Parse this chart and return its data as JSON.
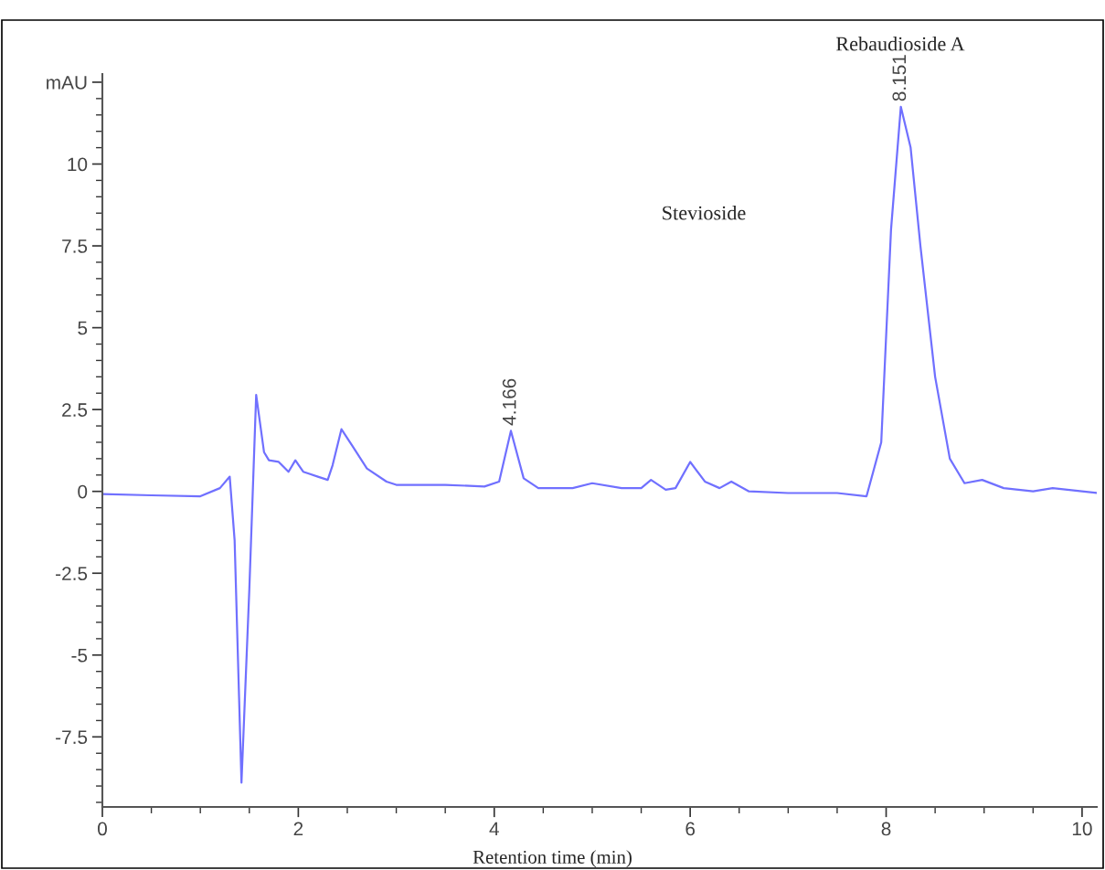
{
  "chart_data": {
    "type": "line",
    "xlabel": "Retention time (min)",
    "x": [
      0,
      0.5,
      1.0,
      1.2,
      1.3,
      1.35,
      1.42,
      1.5,
      1.57,
      1.65,
      1.7,
      1.8,
      1.9,
      1.97,
      2.05,
      2.1,
      2.2,
      2.3,
      2.35,
      2.44,
      2.55,
      2.7,
      2.9,
      3.0,
      3.5,
      3.9,
      4.05,
      4.17,
      4.3,
      4.45,
      4.8,
      5.0,
      5.3,
      5.5,
      5.6,
      5.75,
      5.85,
      6.0,
      6.15,
      6.3,
      6.42,
      6.6,
      7.0,
      7.5,
      7.8,
      7.95,
      8.05,
      8.15,
      8.25,
      8.35,
      8.5,
      8.65,
      8.8,
      8.98,
      9.2,
      9.5,
      9.7,
      10.15
    ],
    "series": [
      {
        "color": "#7070ff",
        "values": [
          -0.08,
          -0.12,
          -0.15,
          0.1,
          0.45,
          -1.5,
          -8.9,
          -3,
          2.95,
          1.2,
          0.95,
          0.9,
          0.6,
          0.95,
          0.6,
          0.55,
          0.45,
          0.35,
          0.8,
          1.9,
          1.4,
          0.7,
          0.3,
          0.2,
          0.2,
          0.15,
          0.3,
          1.85,
          0.4,
          0.1,
          0.1,
          0.25,
          0.1,
          0.1,
          0.35,
          0.05,
          0.1,
          0.9,
          0.3,
          0.1,
          0.3,
          0.0,
          -0.05,
          -0.05,
          -0.15,
          1.5,
          8,
          11.75,
          10.5,
          7.5,
          3.5,
          1.0,
          0.25,
          0.35,
          0.1,
          0.0,
          0.1,
          -0.05
        ]
      }
    ],
    "xlim": [
      0,
      10.15
    ],
    "ylim": [
      -9.64,
      12.75
    ],
    "xticks": [
      0,
      2,
      4,
      6,
      8,
      10
    ],
    "yticks": [
      -7.5,
      -5,
      -2.5,
      0,
      2.5,
      5,
      7.5,
      10,
      {
        "value": 12.5,
        "label": "mAU"
      }
    ],
    "grid": false,
    "annotations": [
      {
        "text": "4.166",
        "x": 4.17,
        "y": 1.85
      },
      {
        "text": "8.151",
        "x": 8.15,
        "y": 11.75
      },
      "Stevioside",
      "Rebaudioside A"
    ]
  }
}
